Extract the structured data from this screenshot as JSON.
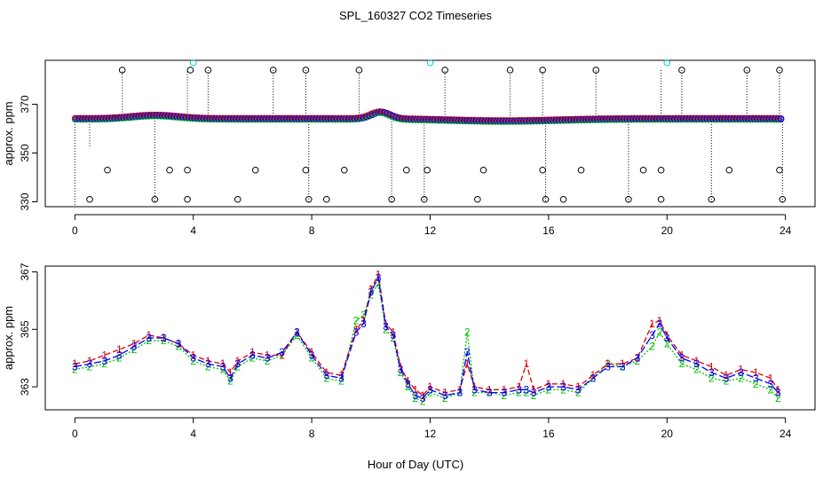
{
  "title": "SPL_160327  CO2 Timeseries",
  "xlabel": "Hour of Day (UTC)",
  "colors": {
    "red": "#e00000",
    "green": "#00c000",
    "blue": "#0000ff",
    "cyan": "#00c8c8",
    "black": "#000000"
  },
  "chart_data": [
    {
      "type": "scatter",
      "name": "top",
      "ylabel": "approx. ppm",
      "xlim": [
        -1,
        25
      ],
      "ylim": [
        328,
        388
      ],
      "xticks": [
        "0",
        "4",
        "8",
        "12",
        "16",
        "20",
        "24"
      ],
      "yticks": [
        "330",
        "350",
        "370"
      ],
      "series": [
        {
          "name": "spike-high",
          "color": "black",
          "x": [
            1.6,
            3.9,
            4.5,
            6.7,
            7.8,
            9.6,
            12.5,
            14.7,
            15.8,
            17.6,
            20.5,
            22.7,
            23.8
          ],
          "y": [
            384,
            384,
            384,
            384,
            384,
            384,
            384,
            384,
            384,
            384,
            384,
            384,
            384
          ]
        },
        {
          "name": "spike-low",
          "color": "black",
          "x": [
            0.5,
            2.7,
            3.8,
            5.5,
            7.9,
            8.5,
            10.7,
            11.8,
            13.6,
            15.9,
            16.5,
            18.7,
            19.8,
            21.5,
            23.9
          ],
          "y": [
            331,
            331,
            331,
            331,
            331,
            331,
            331,
            331,
            331,
            331,
            331,
            331,
            331,
            331,
            331
          ]
        },
        {
          "name": "spike-mid",
          "color": "black",
          "x": [
            1.1,
            3.2,
            3.8,
            6.1,
            7.8,
            9.1,
            11.2,
            11.9,
            13.8,
            15.8,
            17.1,
            19.2,
            19.8,
            22.1,
            23.8
          ],
          "y": [
            343,
            343,
            343,
            343,
            343,
            343,
            343,
            343,
            343,
            343,
            343,
            343,
            343,
            343,
            343
          ]
        },
        {
          "name": "cyan",
          "color": "cyan",
          "x": [
            4.0,
            12.0,
            20.0
          ],
          "y": [
            387,
            387,
            387
          ]
        }
      ]
    },
    {
      "type": "line",
      "name": "bottom",
      "ylabel": "approx. ppm",
      "xlim": [
        -1,
        25
      ],
      "ylim": [
        362.2,
        367.2
      ],
      "xticks": [
        "0",
        "4",
        "8",
        "12",
        "16",
        "20",
        "24"
      ],
      "yticks": [
        "363",
        "365",
        "367"
      ],
      "x": [
        0,
        0.5,
        1,
        1.5,
        2,
        2.5,
        3,
        3.5,
        4,
        4.5,
        5,
        5.25,
        5.5,
        6,
        6.5,
        7,
        7.5,
        8,
        8.5,
        9,
        9.5,
        9.75,
        10,
        10.25,
        10.5,
        10.75,
        11,
        11.25,
        11.5,
        11.75,
        12,
        12.5,
        13,
        13.25,
        13.5,
        14,
        14.5,
        15,
        15.25,
        15.5,
        16,
        16.5,
        17,
        17.5,
        18,
        18.5,
        19,
        19.5,
        19.75,
        20,
        20.5,
        21,
        21.5,
        22,
        22.5,
        23,
        23.5,
        23.75
      ],
      "series": [
        {
          "name": "1",
          "color": "red",
          "values": [
            363.8,
            363.9,
            364.1,
            364.3,
            364.5,
            364.8,
            364.7,
            364.5,
            364.1,
            363.9,
            363.8,
            363.5,
            363.9,
            364.2,
            364.1,
            364.1,
            364.9,
            364.2,
            363.5,
            363.4,
            365.0,
            365.3,
            366.4,
            366.9,
            365.2,
            364.9,
            363.7,
            363.2,
            362.9,
            362.7,
            363.0,
            362.8,
            362.9,
            363.8,
            363.0,
            362.9,
            362.9,
            363.0,
            363.8,
            362.9,
            363.1,
            363.1,
            363.0,
            363.4,
            363.8,
            363.8,
            364.0,
            365.2,
            365.3,
            364.8,
            364.1,
            363.9,
            363.7,
            363.4,
            363.6,
            363.5,
            363.3,
            362.9
          ]
        },
        {
          "name": "2",
          "color": "green",
          "values": [
            363.6,
            363.7,
            363.8,
            364.0,
            364.3,
            364.6,
            364.6,
            364.4,
            363.9,
            363.7,
            363.6,
            363.2,
            363.7,
            364.0,
            363.9,
            364.1,
            364.8,
            364.0,
            363.3,
            363.2,
            365.3,
            365.5,
            366.2,
            366.6,
            365.0,
            364.7,
            363.5,
            363.0,
            362.6,
            362.5,
            362.8,
            362.6,
            362.8,
            364.9,
            362.8,
            362.8,
            362.7,
            362.8,
            362.8,
            362.7,
            362.9,
            362.9,
            362.8,
            363.3,
            363.8,
            363.7,
            363.9,
            364.4,
            364.9,
            364.5,
            363.8,
            363.6,
            363.3,
            363.2,
            363.3,
            363.1,
            362.9,
            362.6
          ]
        },
        {
          "name": "3",
          "color": "blue",
          "values": [
            363.7,
            363.8,
            363.9,
            364.1,
            364.4,
            364.7,
            364.7,
            364.5,
            364.0,
            363.8,
            363.7,
            363.3,
            363.8,
            364.1,
            364.0,
            364.2,
            364.9,
            364.1,
            363.4,
            363.3,
            364.9,
            365.2,
            366.3,
            366.8,
            365.1,
            364.8,
            363.6,
            363.1,
            362.7,
            362.6,
            362.9,
            362.7,
            362.8,
            364.2,
            362.9,
            362.8,
            362.8,
            362.9,
            362.9,
            362.8,
            363.0,
            363.0,
            362.9,
            363.3,
            363.7,
            363.7,
            364.0,
            364.8,
            365.2,
            364.7,
            364.0,
            363.8,
            363.5,
            363.3,
            363.5,
            363.3,
            363.1,
            362.8
          ]
        }
      ]
    }
  ]
}
